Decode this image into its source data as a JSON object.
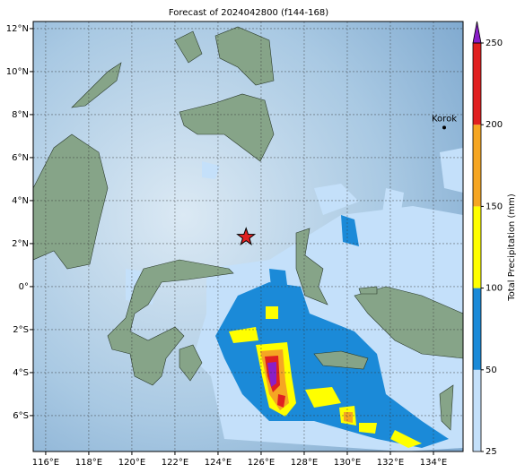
{
  "map": {
    "title": "Forecast of 2024042800 (f144-168)",
    "xlim": [
      115.42,
      135.375
    ],
    "ylim": [
      -7.67,
      12.33
    ],
    "xticks": [
      {
        "value": 116,
        "label": "116°E"
      },
      {
        "value": 118,
        "label": "118°E"
      },
      {
        "value": 120,
        "label": "120°E"
      },
      {
        "value": 122,
        "label": "122°E"
      },
      {
        "value": 124,
        "label": "124°E"
      },
      {
        "value": 126,
        "label": "126°E"
      },
      {
        "value": 128,
        "label": "128°E"
      },
      {
        "value": 130,
        "label": "130°E"
      },
      {
        "value": 132,
        "label": "132°E"
      },
      {
        "value": 134,
        "label": "134°E"
      }
    ],
    "yticks": [
      {
        "value": 12,
        "label": "12°N"
      },
      {
        "value": 10,
        "label": "10°N"
      },
      {
        "value": 8,
        "label": "8°N"
      },
      {
        "value": 6,
        "label": "6°N"
      },
      {
        "value": 4,
        "label": "4°N"
      },
      {
        "value": 2,
        "label": "2°N"
      },
      {
        "value": 0,
        "label": "0°"
      },
      {
        "value": -2,
        "label": "2°S"
      },
      {
        "value": -4,
        "label": "4°S"
      },
      {
        "value": -6,
        "label": "6°S"
      }
    ],
    "colorbar": {
      "label": "Total Precipitation (mm)",
      "levels": [
        25,
        50,
        100,
        150,
        200,
        250
      ],
      "colors": [
        "#c4e0fa",
        "#1b8ad8",
        "#ffff00",
        "#f5a623",
        "#e02020"
      ],
      "over_color": "#8a1fc8"
    },
    "places": [
      {
        "name": "Korok",
        "lon": 134.5,
        "lat": 7.4
      }
    ],
    "star": {
      "lon": 125.3,
      "lat": 2.3
    }
  }
}
